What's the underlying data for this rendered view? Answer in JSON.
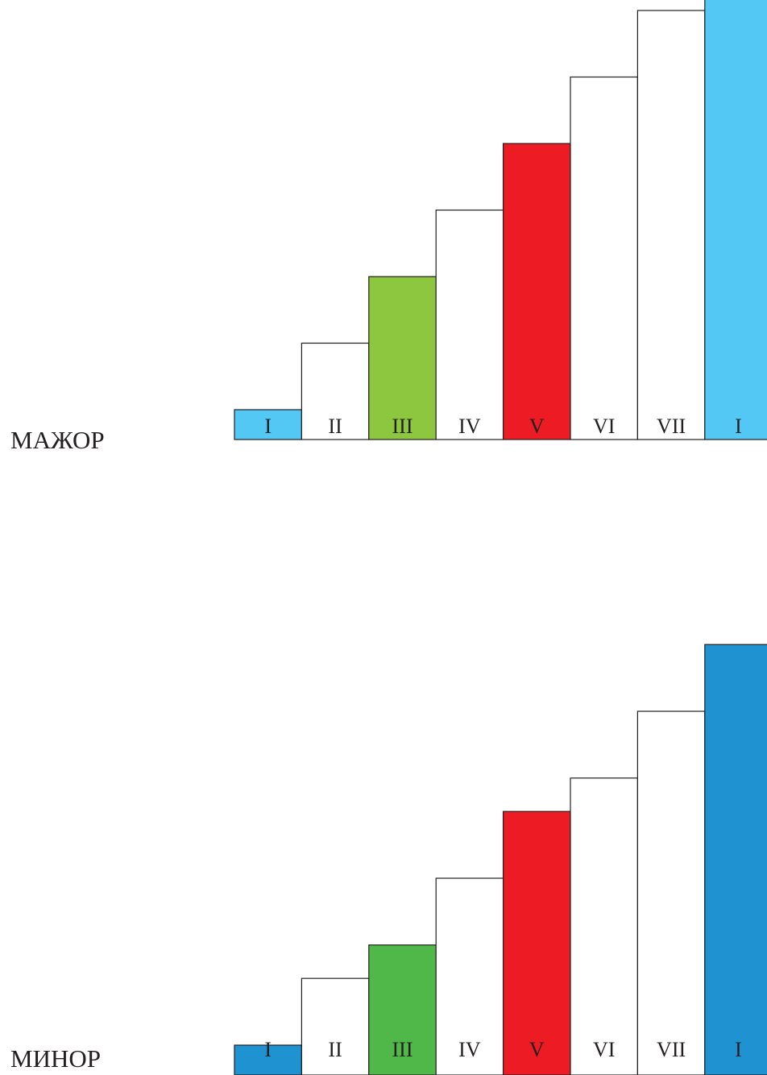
{
  "scales": [
    {
      "id": "major",
      "label": "МАЖОР",
      "steps": [
        {
          "degree": "I",
          "level": 1,
          "color": "#54c8f5"
        },
        {
          "degree": "II",
          "level": 2,
          "color": "#ffffff"
        },
        {
          "degree": "III",
          "level": 3,
          "color": "#8dc63f"
        },
        {
          "degree": "IV",
          "level": 4,
          "color": "#ffffff"
        },
        {
          "degree": "V",
          "level": 5,
          "color": "#ed1c24"
        },
        {
          "degree": "VI",
          "level": 6,
          "color": "#ffffff"
        },
        {
          "degree": "VII",
          "level": 7,
          "color": "#ffffff"
        },
        {
          "degree": "I",
          "level": 8,
          "color": "#54c8f5"
        }
      ]
    },
    {
      "id": "minor",
      "label": "МИНОР",
      "steps": [
        {
          "degree": "I",
          "level": 1,
          "color": "#1f93d1"
        },
        {
          "degree": "II",
          "level": 2,
          "color": "#ffffff"
        },
        {
          "degree": "III",
          "level": 2.5,
          "color": "#50b848"
        },
        {
          "degree": "IV",
          "level": 3.5,
          "color": "#ffffff"
        },
        {
          "degree": "V",
          "level": 4.5,
          "color": "#ed1c24"
        },
        {
          "degree": "VI",
          "level": 5,
          "color": "#ffffff"
        },
        {
          "degree": "VII",
          "level": 6,
          "color": "#ffffff"
        },
        {
          "degree": "I",
          "level": 7,
          "color": "#1f93d1"
        }
      ]
    }
  ]
}
